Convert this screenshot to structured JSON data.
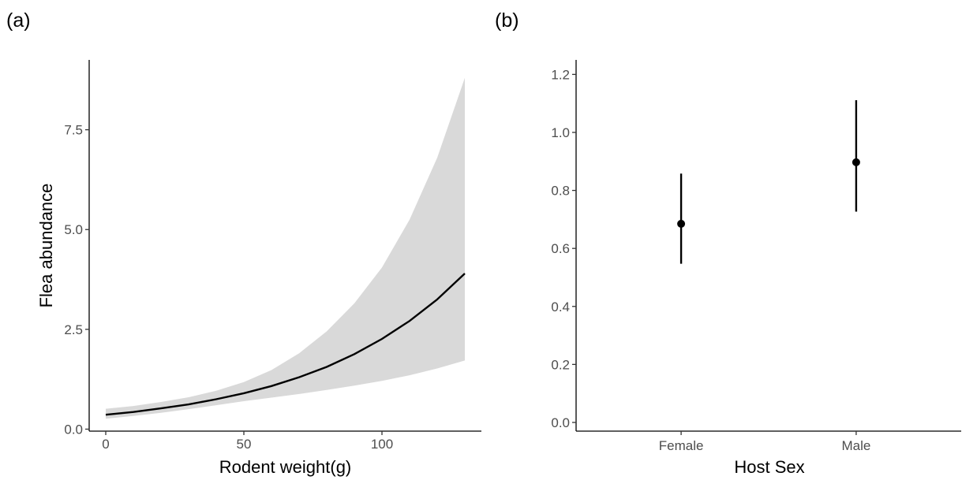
{
  "panels": {
    "a_label": "(a)",
    "b_label": "(b)"
  },
  "chart_data": [
    {
      "type": "line",
      "panel": "(a)",
      "xlabel": "Rodent weight(g)",
      "ylabel": "Flea abundance",
      "xlim": [
        -6,
        136
      ],
      "ylim": [
        -0.05,
        9.25
      ],
      "xticks": [
        0,
        50,
        100
      ],
      "xtick_labels": [
        "0",
        "50",
        "100"
      ],
      "yticks": [
        0,
        2.5,
        5,
        7.5
      ],
      "ytick_labels": [
        "0.0",
        "2.5",
        "5.0",
        "7.5"
      ],
      "grid": false,
      "band_color": "#d9d9d9",
      "line_color": "#000000",
      "series": [
        {
          "x": [
            0,
            10,
            20,
            30,
            40,
            50,
            60,
            70,
            80,
            90,
            100,
            110,
            120,
            130
          ],
          "y": [
            0.36,
            0.43,
            0.52,
            0.62,
            0.75,
            0.9,
            1.08,
            1.3,
            1.56,
            1.88,
            2.26,
            2.71,
            3.25,
            3.9
          ],
          "lower": [
            0.26,
            0.33,
            0.41,
            0.5,
            0.6,
            0.7,
            0.79,
            0.88,
            0.98,
            1.09,
            1.21,
            1.35,
            1.52,
            1.72
          ],
          "upper": [
            0.51,
            0.58,
            0.68,
            0.8,
            0.96,
            1.18,
            1.48,
            1.9,
            2.45,
            3.15,
            4.05,
            5.25,
            6.8,
            8.8
          ]
        }
      ]
    },
    {
      "type": "scatter",
      "panel": "(b)",
      "xlabel": "Host Sex",
      "ylabel": "",
      "categories": [
        "Female",
        "Male"
      ],
      "ylim": [
        -0.03,
        1.25
      ],
      "yticks": [
        0.0,
        0.2,
        0.4,
        0.6,
        0.8,
        1.0,
        1.2
      ],
      "ytick_labels": [
        "0.0",
        "0.2",
        "0.4",
        "0.6",
        "0.8",
        "1.0",
        "1.2"
      ],
      "grid": false,
      "values": [
        0.685,
        0.897
      ],
      "lower": [
        0.547,
        0.727
      ],
      "upper": [
        0.858,
        1.111
      ]
    }
  ]
}
